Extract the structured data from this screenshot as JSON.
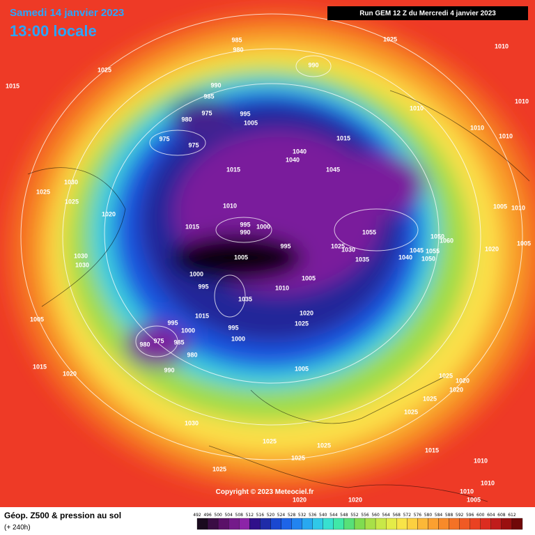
{
  "header": {
    "date": "Samedi 14 janvier 2023",
    "time": "13:00 locale",
    "run": "Run GEM 12 Z du Mercredi 4 janvier 2023"
  },
  "copyright": "Copyright © 2023 Meteociel.fr",
  "footer": {
    "title": "Géop. Z500 & pression au sol",
    "subtitle": "(+ 240h)"
  },
  "scale": {
    "labels": [
      492,
      496,
      500,
      504,
      508,
      512,
      516,
      520,
      524,
      528,
      532,
      536,
      540,
      544,
      548,
      552,
      556,
      560,
      564,
      568,
      572,
      576,
      580,
      584,
      588,
      592,
      596,
      600,
      604,
      608,
      612
    ]
  },
  "isobars": {
    "labels": [
      985,
      980,
      990,
      1025,
      1010,
      1025,
      1015,
      990,
      985,
      975,
      980,
      995,
      1005,
      975,
      975,
      1040,
      1040,
      1015,
      1010,
      1010,
      1010,
      1010,
      1045,
      1015,
      1030,
      1025,
      1025,
      1020,
      1010,
      1015,
      995,
      990,
      1000,
      1055,
      1050,
      1060,
      995,
      1025,
      1030,
      1045,
      1055,
      1020,
      1005,
      1010,
      1005,
      1005,
      1035,
      1040,
      1050,
      1030,
      1030,
      1000,
      1005,
      995,
      1010,
      1035,
      1000,
      1015,
      1020,
      1025,
      995,
      1000,
      995,
      975,
      980,
      985,
      980,
      990,
      1005,
      1015,
      1020,
      1005,
      1025,
      1020,
      1020,
      1025,
      1025,
      1030,
      1025,
      1025,
      1025,
      1015,
      1010,
      1025,
      1010,
      1010,
      1005,
      1020,
      1020
    ]
  }
}
